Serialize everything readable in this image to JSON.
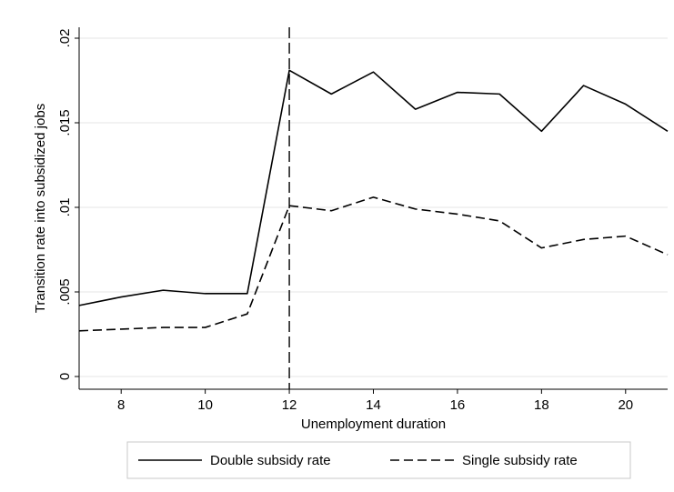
{
  "chart_data": {
    "type": "line",
    "title": "",
    "xlabel": "Unemployment duration",
    "ylabel": "Transition rate into subsidized jobs",
    "xlim": [
      7,
      21
    ],
    "ylim": [
      0,
      0.02
    ],
    "xticks": [
      8,
      10,
      12,
      14,
      16,
      18,
      20
    ],
    "yticks": [
      {
        "value": 0,
        "label": "0"
      },
      {
        "value": 0.005,
        "label": ".005"
      },
      {
        "value": 0.01,
        "label": ".01"
      },
      {
        "value": 0.015,
        "label": ".015"
      },
      {
        "value": 0.02,
        "label": ".02"
      }
    ],
    "grid": true,
    "reference_line_x": 12,
    "legend_position": "bottom",
    "x": [
      7,
      8,
      9,
      10,
      11,
      12,
      13,
      14,
      15,
      16,
      17,
      18,
      19,
      20,
      21
    ],
    "series": [
      {
        "name": "Double subsidy rate",
        "style": "solid",
        "color": "#000000",
        "values": [
          0.0042,
          0.0047,
          0.0051,
          0.0049,
          0.0049,
          0.0181,
          0.0167,
          0.018,
          0.0158,
          0.0168,
          0.0167,
          0.0145,
          0.0172,
          0.0161,
          0.0145
        ]
      },
      {
        "name": "Single subsidy rate",
        "style": "dashed",
        "color": "#000000",
        "values": [
          0.0027,
          0.0028,
          0.0029,
          0.0029,
          0.0037,
          0.0101,
          0.0098,
          0.0106,
          0.0099,
          0.0096,
          0.0092,
          0.0076,
          0.0081,
          0.0083,
          0.0072
        ]
      }
    ]
  }
}
